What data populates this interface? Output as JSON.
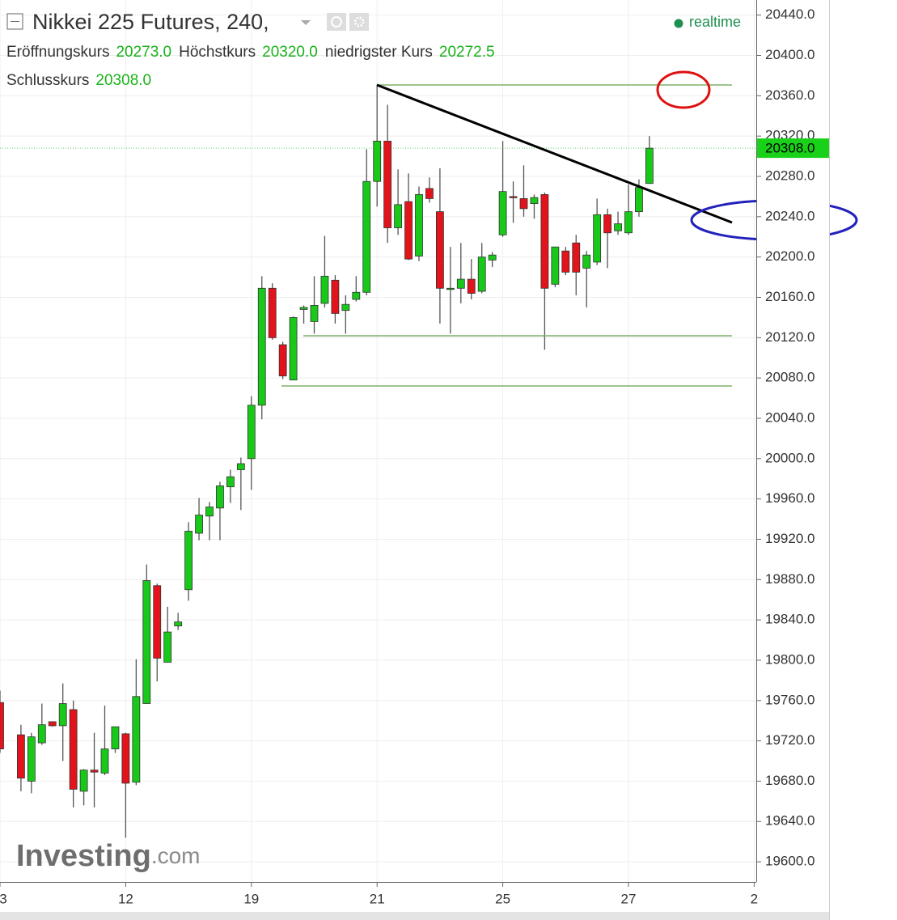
{
  "chart_data": {
    "type": "candlestick",
    "title": "Nikkei 225 Futures, 240,",
    "status": "realtime",
    "info": [
      {
        "label": "Eröffnungskurs",
        "value": "20273.0"
      },
      {
        "label": "Höchstkurs",
        "value": "20320.0"
      },
      {
        "label": "niedrigster Kurs",
        "value": "20272.5"
      },
      {
        "label": "Schlusskurs",
        "value": "20308.0"
      }
    ],
    "watermark": [
      "Investing",
      ".com"
    ],
    "up_color": "#19c919",
    "down_color": "#e3131b",
    "grid": true,
    "last_price": {
      "value": 20308,
      "label": "20308.0"
    },
    "xlim": [
      0,
      72.2
    ],
    "ylim": [
      19580,
      20455
    ],
    "xticks": [
      {
        "value": 0,
        "label": "3"
      },
      12,
      {
        "value": 24,
        "label": "19"
      },
      {
        "value": 36,
        "label": "21"
      },
      {
        "value": 48,
        "label": "25"
      },
      {
        "value": 60,
        "label": "27"
      },
      {
        "value": 72,
        "label": "2"
      }
    ],
    "yticks": [
      {
        "value": 19600,
        "label": "19600.0"
      },
      {
        "value": 19640,
        "label": "19640.0"
      },
      {
        "value": 19680,
        "label": "19680.0"
      },
      {
        "value": 19720,
        "label": "19720.0"
      },
      {
        "value": 19760,
        "label": "19760.0"
      },
      {
        "value": 19800,
        "label": "19800.0"
      },
      {
        "value": 19840,
        "label": "19840.0"
      },
      {
        "value": 19880,
        "label": "19880.0"
      },
      {
        "value": 19920,
        "label": "19920.0"
      },
      {
        "value": 19960,
        "label": "19960.0"
      },
      {
        "value": 20000,
        "label": "20000.0"
      },
      {
        "value": 20040,
        "label": "20040.0"
      },
      {
        "value": 20080,
        "label": "20080.0"
      },
      {
        "value": 20120,
        "label": "20120.0"
      },
      {
        "value": 20160,
        "label": "20160.0"
      },
      {
        "value": 20200,
        "label": "20200.0"
      },
      {
        "value": 20240,
        "label": "20240.0"
      },
      {
        "value": 20280,
        "label": "20280.0"
      },
      {
        "value": 20320,
        "label": "20320.0"
      },
      {
        "value": 20360,
        "label": "20360.0"
      },
      {
        "value": 20400,
        "label": "20400.0"
      },
      {
        "value": 20440,
        "label": "20440.0"
      }
    ],
    "x": [
      0,
      2,
      3,
      4,
      5,
      6,
      7,
      8,
      9,
      10,
      11,
      12,
      13,
      14,
      15,
      16,
      17,
      18,
      19,
      20,
      21,
      22,
      23,
      24,
      25,
      26,
      27,
      28,
      29,
      30,
      31,
      32,
      33,
      34,
      35,
      36,
      37,
      38,
      39,
      40,
      41,
      42,
      43,
      44,
      45,
      46,
      47,
      48,
      49,
      50,
      51,
      52,
      53,
      54,
      55,
      56,
      57,
      58,
      59,
      60,
      61,
      62
    ],
    "open": [
      19758,
      19726,
      19680,
      19718,
      19739,
      19735,
      19751,
      19670,
      19691,
      19688,
      19712,
      19727,
      19679,
      19757,
      19874,
      19798,
      19834,
      19870,
      19926,
      19943,
      19951,
      19972,
      19989,
      20000,
      20053,
      20169,
      20113,
      20078,
      20148,
      20136,
      20154,
      20177,
      20147,
      20158,
      20165,
      20275,
      20315,
      20229,
      20255,
      20201,
      20268,
      20245,
      20168,
      20169,
      20178,
      20166,
      20197,
      20222,
      20260,
      20258,
      20253,
      20262,
      20173,
      20206,
      20214,
      20189,
      20195,
      20242,
      20226,
      20224,
      20245,
      20273
    ],
    "high": [
      19770,
      19736,
      19728,
      19757,
      19739,
      19777,
      19760,
      19692,
      19728,
      19755,
      19734,
      19728,
      19801,
      19895,
      19876,
      19853,
      19847,
      19937,
      19961,
      19957,
      19977,
      19989,
      20001,
      20062,
      20181,
      20174,
      20116,
      20141,
      20152,
      20181,
      20221,
      20182,
      20162,
      20181,
      20307,
      20371,
      20351,
      20287,
      20283,
      20270,
      20279,
      20288,
      20210,
      20214,
      20198,
      20214,
      20205,
      20315,
      20275,
      20291,
      20262,
      20264,
      20210,
      20210,
      20222,
      20206,
      20258,
      20248,
      20245,
      20272,
      20277,
      20320
    ],
    "low": [
      19708,
      19670,
      19668,
      19716,
      19734,
      19700,
      19654,
      19656,
      19654,
      19686,
      19708,
      19624,
      19676,
      19757,
      19779,
      19798,
      19830,
      19859,
      19919,
      19919,
      19919,
      19956,
      19949,
      19969,
      20039,
      20118,
      20079,
      20078,
      20134,
      20124,
      20150,
      20134,
      20124,
      20156,
      20162,
      20250,
      20214,
      20222,
      20197,
      20196,
      20254,
      20134,
      20124,
      20154,
      20158,
      20164,
      20190,
      20220,
      20234,
      20240,
      20238,
      20108,
      20170,
      20182,
      20162,
      20150,
      20192,
      20189,
      20222,
      20222,
      20240,
      20272.5
    ],
    "close": [
      19712,
      19683,
      19724,
      19736,
      19735,
      19757,
      19672,
      19691,
      19689,
      19712,
      19734,
      19678,
      19764,
      19879,
      19802,
      19828,
      19838,
      19928,
      19944,
      19952,
      19973,
      19982,
      19995,
      20053,
      20169,
      20120,
      20082,
      20140,
      20150,
      20152,
      20181,
      20144,
      20153,
      20165,
      20275,
      20315,
      20229,
      20252,
      20198,
      20262,
      20258,
      20169,
      20169,
      20178,
      20164,
      20200,
      20202,
      20265,
      20259,
      20248,
      20259,
      20169,
      20210,
      20185,
      20185,
      20202,
      20242,
      20224,
      20233,
      20245,
      20269,
      20308
    ]
  }
}
